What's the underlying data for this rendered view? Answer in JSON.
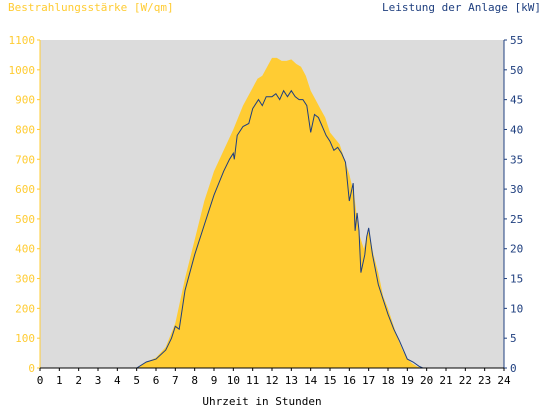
{
  "colors": {
    "irradiance": "#FFCC33",
    "power": "#1F3F7F",
    "plot_background": "#DCDCDC",
    "axis_text_left": "#FFCC33",
    "axis_text_right": "#1F3F7F",
    "axis_text_bottom": "#000000"
  },
  "chart_data": {
    "type": "area",
    "left_axis_title": "Bestrahlungsstärke [W/qm]",
    "right_axis_title": "Leistung der Anlage [kW]",
    "xlabel": "Uhrzeit in Stunden",
    "xlim": [
      0,
      24
    ],
    "ylim_left": [
      0,
      1100
    ],
    "ylim_right": [
      0,
      55
    ],
    "x_ticks": [
      "0",
      "1",
      "2",
      "3",
      "4",
      "5",
      "6",
      "7",
      "8",
      "9",
      "10",
      "11",
      "12",
      "13",
      "14",
      "15",
      "16",
      "17",
      "18",
      "19",
      "20",
      "21",
      "22",
      "23",
      "24"
    ],
    "y_left_ticks": [
      "0",
      "100",
      "200",
      "300",
      "400",
      "500",
      "600",
      "700",
      "800",
      "900",
      "1000",
      "1100"
    ],
    "y_right_ticks": [
      "0",
      "5",
      "10",
      "15",
      "20",
      "25",
      "30",
      "35",
      "40",
      "45",
      "50",
      "55"
    ],
    "grid": false,
    "series": [
      {
        "name": "Bestrahlungsstärke [W/qm]",
        "type": "area",
        "axis": "left",
        "x": [
          0,
          5.0,
          5.5,
          6.0,
          6.5,
          7.0,
          7.5,
          8.0,
          8.5,
          9.0,
          9.5,
          10.0,
          10.5,
          11.0,
          11.25,
          11.5,
          11.75,
          12.0,
          12.25,
          12.5,
          12.75,
          13.0,
          13.25,
          13.5,
          13.75,
          14.0,
          14.25,
          14.5,
          14.75,
          15.0,
          15.25,
          15.5,
          15.75,
          16.0,
          16.25,
          16.5,
          16.75,
          17.0,
          17.25,
          17.5,
          17.75,
          18.0,
          18.25,
          18.5,
          18.75,
          19.0,
          19.25,
          19.5,
          19.75,
          24
        ],
        "values": [
          0,
          0,
          20,
          35,
          70,
          150,
          300,
          430,
          560,
          660,
          730,
          800,
          880,
          940,
          970,
          980,
          1010,
          1040,
          1040,
          1030,
          1030,
          1035,
          1020,
          1010,
          980,
          930,
          900,
          870,
          840,
          790,
          770,
          750,
          700,
          650,
          580,
          450,
          400,
          460,
          380,
          320,
          240,
          200,
          150,
          100,
          60,
          30,
          15,
          5,
          0,
          0
        ]
      },
      {
        "name": "Leistung der Anlage [kW]",
        "type": "line",
        "axis": "right",
        "x": [
          0,
          5.0,
          5.5,
          6.0,
          6.5,
          6.8,
          7.0,
          7.2,
          7.5,
          8.0,
          8.5,
          9.0,
          9.5,
          9.8,
          10.0,
          10.05,
          10.2,
          10.5,
          10.8,
          11.0,
          11.3,
          11.5,
          11.7,
          12.0,
          12.2,
          12.4,
          12.6,
          12.8,
          13.0,
          13.2,
          13.4,
          13.6,
          13.8,
          14.0,
          14.2,
          14.4,
          14.6,
          14.8,
          15.0,
          15.2,
          15.4,
          15.6,
          15.8,
          16.0,
          16.2,
          16.3,
          16.4,
          16.5,
          16.6,
          16.8,
          16.9,
          17.0,
          17.2,
          17.5,
          17.8,
          18.0,
          18.3,
          18.6,
          19.0,
          19.3,
          19.6,
          19.8,
          24
        ],
        "values": [
          0,
          0,
          1,
          1.5,
          3,
          5,
          7,
          6.5,
          13,
          19,
          24,
          29,
          33,
          35,
          36,
          35,
          39,
          40.5,
          41,
          43.5,
          45,
          44,
          45.5,
          45.5,
          46,
          45,
          46.5,
          45.5,
          46.5,
          45.5,
          45,
          45,
          44,
          39.5,
          42.5,
          42,
          40.5,
          39,
          38,
          36.5,
          37,
          36,
          34.5,
          28,
          31,
          23,
          26,
          23,
          16,
          19,
          22,
          23.5,
          19,
          14,
          11,
          9,
          6.5,
          4.5,
          1.5,
          1,
          0.3,
          0,
          0
        ]
      }
    ]
  }
}
